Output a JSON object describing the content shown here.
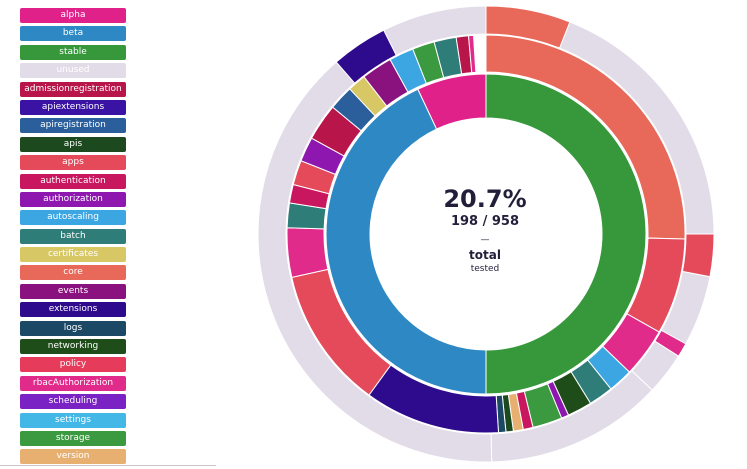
{
  "legend": {
    "items": [
      {
        "label": "alpha",
        "color": "#e0218a"
      },
      {
        "label": "beta",
        "color": "#2d88c3"
      },
      {
        "label": "stable",
        "color": "#36983b"
      },
      {
        "label": "unused",
        "color": "#e2dbe8"
      },
      {
        "label": "admissionregistration",
        "color": "#b8154a"
      },
      {
        "label": "apiextensions",
        "color": "#3a13a4"
      },
      {
        "label": "apiregistration",
        "color": "#2a5f9c"
      },
      {
        "label": "apis",
        "color": "#1c4a1e"
      },
      {
        "label": "apps",
        "color": "#e44a5a"
      },
      {
        "label": "authentication",
        "color": "#c8175e"
      },
      {
        "label": "authorization",
        "color": "#8e17b0"
      },
      {
        "label": "autoscaling",
        "color": "#3ba6e2"
      },
      {
        "label": "batch",
        "color": "#2e7d78"
      },
      {
        "label": "certificates",
        "color": "#d8c765"
      },
      {
        "label": "core",
        "color": "#e8685a"
      },
      {
        "label": "events",
        "color": "#8a127e"
      },
      {
        "label": "extensions",
        "color": "#2e0a8c"
      },
      {
        "label": "logs",
        "color": "#1b4965"
      },
      {
        "label": "networking",
        "color": "#1f4d1a"
      },
      {
        "label": "policy",
        "color": "#e63b5a"
      },
      {
        "label": "rbacAuthorization",
        "color": "#e02b8a"
      },
      {
        "label": "scheduling",
        "color": "#7a22c4"
      },
      {
        "label": "settings",
        "color": "#43b8e6"
      },
      {
        "label": "storage",
        "color": "#3b9a3f"
      },
      {
        "label": "version",
        "color": "#e8b070"
      }
    ]
  },
  "center": {
    "percent": "20.7%",
    "fraction": "198 / 958",
    "dash": "—",
    "label": "total",
    "sublabel": "tested"
  },
  "chart_data": {
    "type": "sunburst",
    "total_tested": 198,
    "total_endpoints": 958,
    "tested_percent": 20.7,
    "inner_ring": [
      {
        "name": "stable",
        "fraction": 0.5,
        "color": "#36983b"
      },
      {
        "name": "beta",
        "fraction": 0.43,
        "color": "#2d88c3"
      },
      {
        "name": "alpha",
        "fraction": 0.07,
        "color": "#e0218a"
      }
    ],
    "middle_ring": [
      {
        "name": "core",
        "parent": "stable",
        "fraction": 0.254,
        "color": "#e8685a"
      },
      {
        "name": "apps",
        "parent": "stable",
        "fraction": 0.078,
        "color": "#e44a5a"
      },
      {
        "name": "rbacAuthorization",
        "parent": "stable",
        "fraction": 0.04,
        "color": "#e02b8a"
      },
      {
        "name": "autoscaling",
        "parent": "stable",
        "fraction": 0.02,
        "color": "#3ba6e2"
      },
      {
        "name": "batch",
        "parent": "stable",
        "fraction": 0.02,
        "color": "#2e7d78"
      },
      {
        "name": "networking",
        "parent": "stable",
        "fraction": 0.02,
        "color": "#1f4d1a"
      },
      {
        "name": "authorization",
        "parent": "stable",
        "fraction": 0.006,
        "color": "#8e17b0"
      },
      {
        "name": "storage",
        "parent": "stable",
        "fraction": 0.024,
        "color": "#3b9a3f"
      },
      {
        "name": "authentication",
        "parent": "stable",
        "fraction": 0.008,
        "color": "#c8175e"
      },
      {
        "name": "version",
        "parent": "stable",
        "fraction": 0.008,
        "color": "#e8b070"
      },
      {
        "name": "apis",
        "parent": "stable",
        "fraction": 0.006,
        "color": "#1c4a1e"
      },
      {
        "name": "logs",
        "parent": "stable",
        "fraction": 0.006,
        "color": "#1b4965"
      },
      {
        "name": "extensions",
        "parent": "beta",
        "fraction": 0.11,
        "color": "#2e0a8c"
      },
      {
        "name": "apps",
        "parent": "beta",
        "fraction": 0.115,
        "color": "#e44a5a"
      },
      {
        "name": "rbacAuthorization",
        "parent": "beta",
        "fraction": 0.04,
        "color": "#e02b8a"
      },
      {
        "name": "batch",
        "parent": "beta",
        "fraction": 0.02,
        "color": "#2e7d78"
      },
      {
        "name": "authentication",
        "parent": "beta",
        "fraction": 0.015,
        "color": "#c8175e"
      },
      {
        "name": "apps",
        "parent": "beta",
        "fraction": 0.02,
        "color": "#e44a5a"
      },
      {
        "name": "authorization",
        "parent": "beta",
        "fraction": 0.02,
        "color": "#8e17b0"
      },
      {
        "name": "admissionregistration",
        "parent": "beta",
        "fraction": 0.03,
        "color": "#b8154a"
      },
      {
        "name": "apiregistration",
        "parent": "beta",
        "fraction": 0.02,
        "color": "#2a5f9c"
      },
      {
        "name": "certificates",
        "parent": "beta",
        "fraction": 0.015,
        "color": "#d8c765"
      },
      {
        "name": "events",
        "parent": "beta",
        "fraction": 0.025,
        "color": "#8a127e"
      },
      {
        "name": "autoscaling",
        "parent": "alpha",
        "fraction": 0.02,
        "color": "#3ba6e2"
      },
      {
        "name": "storage",
        "parent": "alpha",
        "fraction": 0.018,
        "color": "#3b9a3f"
      },
      {
        "name": "batch",
        "parent": "alpha",
        "fraction": 0.018,
        "color": "#2e7d78"
      },
      {
        "name": "admissionregistration",
        "parent": "alpha",
        "fraction": 0.01,
        "color": "#b8154a"
      },
      {
        "name": "rbacAuthorization",
        "parent": "alpha",
        "fraction": 0.004,
        "color": "#e02b8a"
      }
    ],
    "outer_ring": [
      {
        "name": "core tested",
        "fraction": 0.06,
        "color": "#e8685a"
      },
      {
        "name": "core unused",
        "fraction": 0.19,
        "color": "#e2dbe8"
      },
      {
        "name": "apps tested",
        "fraction": 0.03,
        "color": "#e44a5a"
      },
      {
        "name": "apps unused",
        "fraction": 0.05,
        "color": "#e2dbe8"
      },
      {
        "name": "rbacAuthorization tested",
        "fraction": 0.01,
        "color": "#e02b8a"
      },
      {
        "name": "rbacAuthorization unused",
        "fraction": 0.03,
        "color": "#e2dbe8"
      },
      {
        "name": "stable other unused",
        "fraction": 0.126,
        "color": "#e2dbe8"
      },
      {
        "name": "beta unused",
        "fraction": 0.39,
        "color": "#e2dbe8"
      },
      {
        "name": "beta tested",
        "fraction": 0.04,
        "color": "#2e0a8c"
      },
      {
        "name": "alpha unused",
        "fraction": 0.074,
        "color": "#e2dbe8"
      }
    ]
  }
}
